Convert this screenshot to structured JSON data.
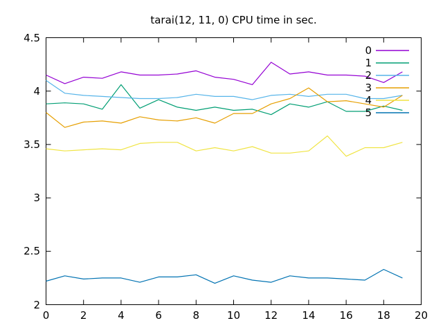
{
  "window": {
    "background": "#ffffff"
  },
  "chart_data": {
    "type": "line",
    "title": "tarai(12, 11, 0) CPU time in sec.",
    "xlabel": "",
    "ylabel": "",
    "xlim": [
      0,
      20
    ],
    "ylim": [
      2.0,
      4.5
    ],
    "x_ticks": [
      "0",
      "2",
      "4",
      "6",
      "8",
      "10",
      "12",
      "14",
      "16",
      "18",
      "20"
    ],
    "x_tick_values": [
      0,
      2,
      4,
      6,
      8,
      10,
      12,
      14,
      16,
      18,
      20
    ],
    "y_ticks": [
      "2",
      "2.5",
      "3",
      "3.5",
      "4",
      "4.5"
    ],
    "y_tick_values": [
      2.0,
      2.5,
      3.0,
      3.5,
      4.0,
      4.5
    ],
    "grid": false,
    "legend_position": "top-right-inside",
    "axis_color": "#000000",
    "text_color": "#000000",
    "x": [
      0,
      1,
      2,
      3,
      4,
      5,
      6,
      7,
      8,
      9,
      10,
      11,
      12,
      13,
      14,
      15,
      16,
      17,
      18,
      19
    ],
    "series": [
      {
        "name": "0",
        "color": "#9400d3",
        "values": [
          4.15,
          4.07,
          4.13,
          4.12,
          4.18,
          4.15,
          4.15,
          4.16,
          4.19,
          4.13,
          4.11,
          4.06,
          4.27,
          4.16,
          4.18,
          4.15,
          4.15,
          4.14,
          4.08,
          4.18
        ]
      },
      {
        "name": "1",
        "color": "#009e73",
        "values": [
          3.88,
          3.89,
          3.88,
          3.83,
          4.06,
          3.84,
          3.92,
          3.85,
          3.82,
          3.85,
          3.82,
          3.83,
          3.78,
          3.88,
          3.85,
          3.9,
          3.81,
          3.81,
          3.86,
          3.82
        ]
      },
      {
        "name": "2",
        "color": "#56b4e9",
        "values": [
          4.1,
          3.98,
          3.96,
          3.95,
          3.94,
          3.93,
          3.93,
          3.94,
          3.97,
          3.95,
          3.95,
          3.92,
          3.96,
          3.97,
          3.95,
          3.97,
          3.97,
          3.93,
          3.93,
          3.96
        ]
      },
      {
        "name": "3",
        "color": "#e69f00",
        "values": [
          3.8,
          3.66,
          3.71,
          3.72,
          3.7,
          3.76,
          3.73,
          3.72,
          3.75,
          3.7,
          3.79,
          3.79,
          3.88,
          3.93,
          4.03,
          3.9,
          3.91,
          3.88,
          3.85,
          3.96
        ]
      },
      {
        "name": "4",
        "color": "#f0e442",
        "values": [
          3.46,
          3.44,
          3.45,
          3.46,
          3.45,
          3.51,
          3.52,
          3.52,
          3.44,
          3.47,
          3.44,
          3.48,
          3.42,
          3.42,
          3.44,
          3.58,
          3.39,
          3.47,
          3.47,
          3.52
        ]
      },
      {
        "name": "5",
        "color": "#0072b2",
        "values": [
          2.22,
          2.27,
          2.24,
          2.25,
          2.25,
          2.21,
          2.26,
          2.26,
          2.28,
          2.2,
          2.27,
          2.23,
          2.21,
          2.27,
          2.25,
          2.25,
          2.24,
          2.23,
          2.33,
          2.25
        ]
      }
    ]
  }
}
